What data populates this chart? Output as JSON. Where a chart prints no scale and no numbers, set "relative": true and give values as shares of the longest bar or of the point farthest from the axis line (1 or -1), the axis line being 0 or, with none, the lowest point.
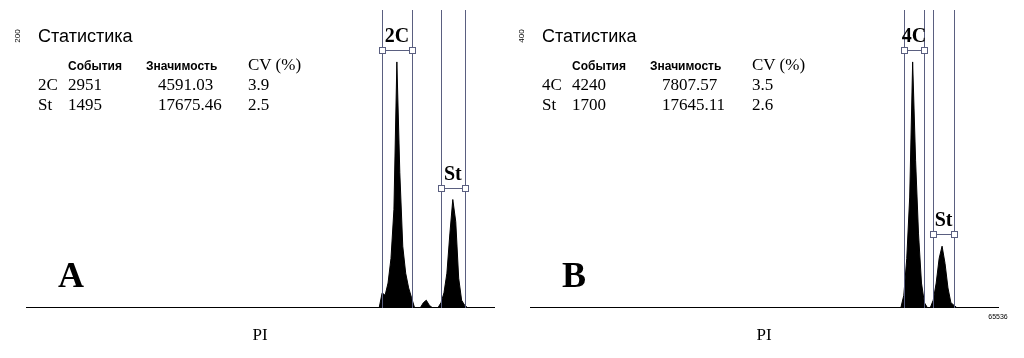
{
  "chart_data": [
    {
      "type": "area",
      "title": "Статистика",
      "xlabel": "PI",
      "relative": true,
      "annotations": [
        "A",
        "200",
        "События",
        "Значимость",
        "CV (%)",
        "2C",
        "2951",
        "4591.03",
        "3.9",
        "St",
        "1495",
        "17675.46",
        "2.5",
        "2C",
        "St"
      ],
      "categories": [
        null,
        null,
        null,
        null,
        null,
        null,
        null,
        null,
        null,
        null,
        null,
        null,
        null,
        null,
        null,
        null,
        null,
        null,
        null,
        null,
        null,
        null,
        null,
        null,
        null,
        null,
        null,
        null,
        null,
        null,
        null,
        null,
        null,
        null,
        null,
        null,
        null,
        null,
        null,
        null,
        null,
        null,
        null,
        null,
        null,
        null,
        null,
        null,
        null,
        null,
        null,
        null,
        null,
        null,
        null,
        null,
        null,
        null,
        null,
        null,
        null,
        null,
        null,
        null,
        null,
        null,
        null,
        null,
        null,
        null,
        null,
        null,
        null,
        null,
        null,
        null,
        null,
        null,
        null,
        null,
        null,
        null,
        null,
        null,
        null,
        null,
        null,
        null,
        null,
        null,
        null,
        null,
        null,
        null,
        null,
        null,
        null,
        null,
        null,
        null,
        null,
        null,
        null,
        null,
        null,
        null,
        null,
        null,
        null,
        null,
        null,
        null,
        null,
        null,
        null,
        null,
        null,
        null,
        null,
        null,
        null,
        null,
        null,
        null,
        null,
        null,
        null,
        null,
        null,
        null,
        null,
        null,
        null,
        null,
        null,
        null,
        null,
        null,
        null,
        null,
        null,
        null,
        null,
        null,
        null,
        null,
        null,
        null,
        null,
        null,
        null,
        null,
        null,
        null,
        null,
        null,
        null,
        null,
        null,
        null
      ],
      "series": [
        {
          "color": "#000000",
          "values": [
            0,
            0,
            0,
            0,
            0,
            0,
            0,
            0,
            0,
            0,
            0,
            0,
            0,
            0,
            0,
            0,
            0,
            0,
            0,
            0,
            0,
            0,
            0,
            0,
            0,
            0,
            0,
            0,
            0,
            0,
            0,
            0,
            0,
            0,
            0,
            0,
            0,
            0,
            0,
            0,
            0,
            0,
            0,
            0,
            0,
            0,
            0,
            0,
            0,
            0,
            0,
            0,
            0,
            0,
            0,
            0,
            0,
            0,
            0,
            0,
            0,
            0,
            0,
            0,
            0,
            0,
            0,
            0,
            0,
            0,
            0,
            0,
            0,
            0,
            0,
            0,
            0,
            0,
            0,
            0,
            0,
            0,
            0,
            0,
            0,
            0,
            0,
            0,
            0,
            0,
            0,
            0,
            0,
            0,
            0,
            0,
            0,
            0,
            0,
            0,
            0,
            0,
            0,
            0,
            0,
            0,
            0,
            0,
            0,
            0,
            0,
            0,
            0,
            0,
            0,
            0,
            0,
            0,
            0,
            0,
            0,
            0.06,
            0.05,
            0.1,
            0.2,
            0.4,
            1,
            0.55,
            0.25,
            0.14,
            0.08,
            0.04,
            0,
            0,
            0,
            0.02,
            0.03,
            0.01,
            0,
            0,
            0,
            0.02,
            0.06,
            0.14,
            0.3,
            0.44,
            0.35,
            0.12,
            0.03,
            0.01,
            0,
            0,
            0,
            0,
            0,
            0,
            0,
            0,
            0,
            0
          ]
        }
      ]
    },
    {
      "type": "area",
      "title": "Статистика",
      "xlabel": "PI",
      "relative": true,
      "annotations": [
        "B",
        "400",
        "События",
        "Значимость",
        "CV (%)",
        "4C",
        "4240",
        "7807.57",
        "3.5",
        "St",
        "1700",
        "17645.11",
        "2.6",
        "4C",
        "St",
        "65536"
      ],
      "categories": [
        null,
        null,
        null,
        null,
        null,
        null,
        null,
        null,
        null,
        null,
        null,
        null,
        null,
        null,
        null,
        null,
        null,
        null,
        null,
        null,
        null,
        null,
        null,
        null,
        null,
        null,
        null,
        null,
        null,
        null,
        null,
        null,
        null,
        null,
        null,
        null,
        null,
        null,
        null,
        null,
        null,
        null,
        null,
        null,
        null,
        null,
        null,
        null,
        null,
        null,
        null,
        null,
        null,
        null,
        null,
        null,
        null,
        null,
        null,
        null,
        null,
        null,
        null,
        null,
        null,
        null,
        null,
        null,
        null,
        null,
        null,
        null,
        null,
        null,
        null,
        null,
        null,
        null,
        null,
        null,
        null,
        null,
        null,
        null,
        null,
        null,
        null,
        null,
        null,
        null,
        null,
        null,
        null,
        null,
        null,
        null,
        null,
        null,
        null,
        null,
        null,
        null,
        null,
        null,
        null,
        null,
        null,
        null,
        null,
        null,
        null,
        null,
        null,
        null,
        null,
        null,
        null,
        null,
        null,
        null,
        null,
        null,
        null,
        null,
        null,
        null,
        null,
        null,
        null,
        null,
        null,
        null,
        null,
        null,
        null,
        null,
        null,
        null,
        null,
        null,
        null,
        null,
        null,
        null,
        null,
        null,
        null,
        null,
        null,
        null,
        null,
        null,
        null,
        null,
        null,
        null,
        null,
        null,
        null,
        null
      ],
      "series": [
        {
          "color": "#000000",
          "values": [
            0,
            0,
            0,
            0,
            0,
            0,
            0,
            0,
            0,
            0,
            0,
            0,
            0,
            0,
            0,
            0,
            0,
            0,
            0,
            0,
            0,
            0,
            0,
            0,
            0,
            0,
            0,
            0,
            0,
            0,
            0,
            0,
            0,
            0,
            0,
            0,
            0,
            0,
            0,
            0,
            0,
            0,
            0,
            0,
            0,
            0,
            0,
            0,
            0,
            0,
            0,
            0,
            0,
            0,
            0,
            0,
            0,
            0,
            0,
            0,
            0,
            0,
            0,
            0,
            0,
            0,
            0,
            0,
            0,
            0,
            0,
            0,
            0,
            0,
            0,
            0,
            0,
            0,
            0,
            0,
            0,
            0,
            0,
            0,
            0,
            0,
            0,
            0,
            0,
            0,
            0,
            0,
            0,
            0,
            0,
            0,
            0,
            0,
            0,
            0,
            0,
            0,
            0,
            0,
            0,
            0,
            0,
            0,
            0,
            0,
            0,
            0,
            0,
            0,
            0,
            0,
            0,
            0,
            0,
            0,
            0,
            0,
            0,
            0,
            0,
            0,
            0,
            0.05,
            0.2,
            0.45,
            1,
            0.6,
            0.3,
            0.1,
            0.02,
            0,
            0,
            0.03,
            0.1,
            0.2,
            0.25,
            0.18,
            0.08,
            0.02,
            0.01,
            0,
            0,
            0,
            0,
            0,
            0,
            0,
            0,
            0,
            0,
            0,
            0,
            0,
            0,
            0
          ]
        }
      ]
    }
  ]
}
